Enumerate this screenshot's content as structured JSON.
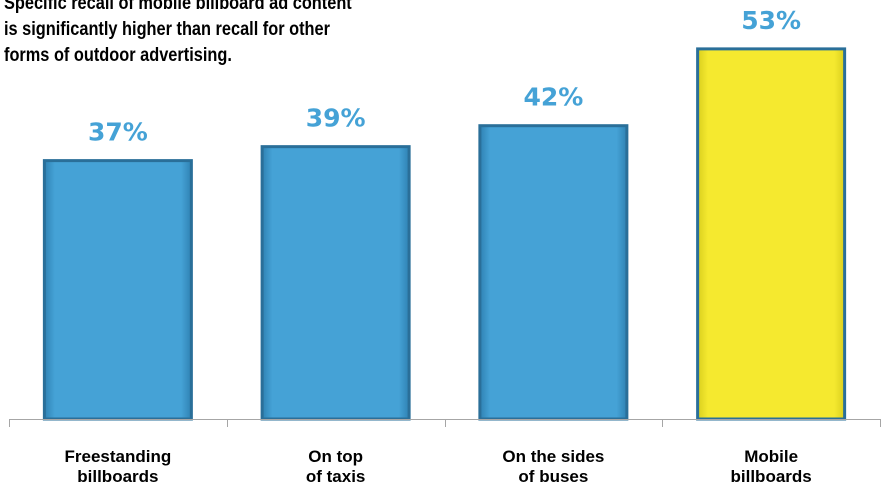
{
  "title_lines": [
    "Specific recall of mobile billboard ad content",
    "is significantly higher than recall for other",
    "forms of outdoor advertising."
  ],
  "colors": {
    "bar": "#45a2d6",
    "bar_edge": "#2a6f99",
    "highlight": "#f5e92f",
    "highlight_edge": "#2a6f99",
    "value_label": "#45a2d6",
    "axis": "#a6a6a6"
  },
  "chart_data": {
    "type": "bar",
    "categories": [
      [
        "Freestanding",
        "billboards"
      ],
      [
        "On top",
        "of taxis"
      ],
      [
        "On the sides",
        "of buses"
      ],
      [
        "Mobile",
        "billboards"
      ]
    ],
    "values": [
      37,
      39,
      42,
      53
    ],
    "value_labels": [
      "37%",
      "39%",
      "42%",
      "53%"
    ],
    "highlight_index": 3,
    "ylim": [
      0,
      60
    ],
    "grid": false,
    "legend": "none",
    "xlabel": "",
    "ylabel": ""
  }
}
